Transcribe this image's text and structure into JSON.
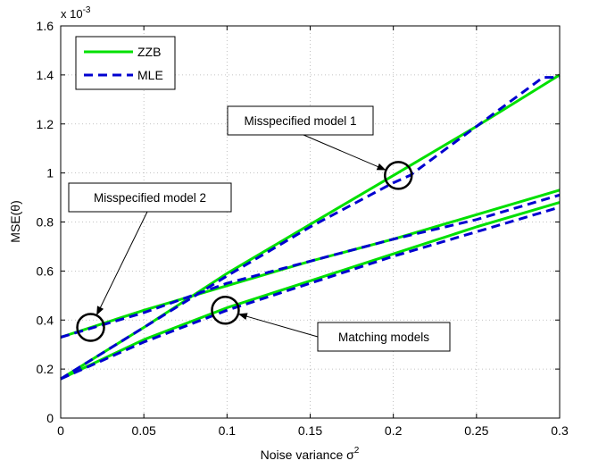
{
  "chart_data": {
    "type": "line",
    "title": "",
    "xlabel": "Noise variance σ²",
    "xlabel_base": "Noise variance σ",
    "xlabel_sup": "2",
    "ylabel": "MSE(θ)",
    "y_multiplier": "x 10",
    "y_multiplier_exp": "-3",
    "xlim": [
      0,
      0.3
    ],
    "ylim": [
      0,
      1.6
    ],
    "x_ticks": [
      0,
      0.05,
      0.1,
      0.15,
      0.2,
      0.25,
      0.3
    ],
    "x_tick_labels": [
      "0",
      "0.05",
      "0.1",
      "0.15",
      "0.2",
      "0.25",
      "0.3"
    ],
    "y_ticks": [
      0,
      0.2,
      0.4,
      0.6,
      0.8,
      1.0,
      1.2,
      1.4,
      1.6
    ],
    "y_tick_labels": [
      "0",
      "0.2",
      "0.4",
      "0.6",
      "0.8",
      "1",
      "1.2",
      "1.4",
      "1.6"
    ],
    "grid": true,
    "legend_position": "top-left",
    "legend": [
      {
        "name": "ZZB",
        "color": "#00e000",
        "style": "solid"
      },
      {
        "name": "MLE",
        "color": "#0000d0",
        "style": "dashed"
      }
    ],
    "series": [
      {
        "name": "ZZB",
        "curve": "Misspecified model 1",
        "color": "#00e000",
        "style": "solid",
        "x": [
          0,
          0.05,
          0.1,
          0.15,
          0.2,
          0.25,
          0.3
        ],
        "y": [
          0.16,
          0.37,
          0.59,
          0.79,
          0.99,
          1.19,
          1.4
        ]
      },
      {
        "name": "MLE",
        "curve": "Misspecified model 1",
        "color": "#0000d0",
        "style": "dashed",
        "x": [
          0,
          0.05,
          0.1,
          0.15,
          0.2,
          0.21,
          0.25,
          0.29,
          0.3
        ],
        "y": [
          0.16,
          0.37,
          0.58,
          0.78,
          0.96,
          0.99,
          1.19,
          1.39,
          1.39
        ]
      },
      {
        "name": "ZZB",
        "curve": "Misspecified model 2",
        "color": "#00e000",
        "style": "solid",
        "x": [
          0,
          0.05,
          0.1,
          0.15,
          0.2,
          0.25,
          0.3
        ],
        "y": [
          0.33,
          0.44,
          0.54,
          0.64,
          0.73,
          0.83,
          0.93
        ]
      },
      {
        "name": "MLE",
        "curve": "Misspecified model 2",
        "color": "#0000d0",
        "style": "dashed",
        "x": [
          0,
          0.05,
          0.1,
          0.15,
          0.2,
          0.25,
          0.3
        ],
        "y": [
          0.33,
          0.43,
          0.55,
          0.64,
          0.73,
          0.81,
          0.91
        ]
      },
      {
        "name": "ZZB",
        "curve": "Matching models",
        "color": "#00e000",
        "style": "solid",
        "x": [
          0,
          0.05,
          0.1,
          0.15,
          0.2,
          0.25,
          0.3
        ],
        "y": [
          0.16,
          0.32,
          0.45,
          0.56,
          0.67,
          0.78,
          0.88
        ]
      },
      {
        "name": "MLE",
        "curve": "Matching models",
        "color": "#0000d0",
        "style": "dashed",
        "x": [
          0,
          0.05,
          0.1,
          0.15,
          0.2,
          0.25,
          0.3
        ],
        "y": [
          0.16,
          0.31,
          0.44,
          0.55,
          0.66,
          0.76,
          0.86
        ]
      }
    ],
    "annotations": [
      {
        "text": "Misspecified model 1",
        "target_x": 0.203,
        "target_y": 0.99
      },
      {
        "text": "Misspecified model 2",
        "target_x": 0.018,
        "target_y": 0.37
      },
      {
        "text": "Matching models",
        "target_x": 0.099,
        "target_y": 0.44
      }
    ]
  }
}
